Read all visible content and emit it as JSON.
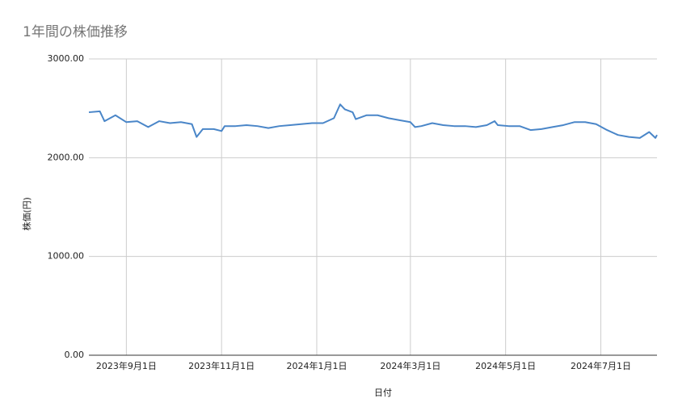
{
  "chart_data": {
    "type": "line",
    "title": "1年間の株価推移",
    "x_label": "日付",
    "y_label": "株価(円)",
    "x": [
      "2023-08-08",
      "2023-08-15",
      "2023-08-18",
      "2023-08-25",
      "2023-09-01",
      "2023-09-08",
      "2023-09-15",
      "2023-09-22",
      "2023-09-29",
      "2023-10-06",
      "2023-10-13",
      "2023-10-16",
      "2023-10-20",
      "2023-10-27",
      "2023-11-01",
      "2023-11-03",
      "2023-11-10",
      "2023-11-17",
      "2023-11-24",
      "2023-12-01",
      "2023-12-08",
      "2023-12-15",
      "2023-12-22",
      "2023-12-29",
      "2024-01-05",
      "2024-01-12",
      "2024-01-16",
      "2024-01-19",
      "2024-01-24",
      "2024-01-26",
      "2024-02-02",
      "2024-02-09",
      "2024-02-16",
      "2024-02-23",
      "2024-03-01",
      "2024-03-04",
      "2024-03-08",
      "2024-03-15",
      "2024-03-22",
      "2024-03-29",
      "2024-04-05",
      "2024-04-12",
      "2024-04-19",
      "2024-04-24",
      "2024-04-26",
      "2024-05-03",
      "2024-05-10",
      "2024-05-17",
      "2024-05-24",
      "2024-05-31",
      "2024-06-07",
      "2024-06-14",
      "2024-06-21",
      "2024-06-28",
      "2024-07-05",
      "2024-07-12",
      "2024-07-19",
      "2024-07-26",
      "2024-08-01",
      "2024-08-05",
      "2024-08-06"
    ],
    "series": [
      {
        "name": "株価",
        "color": "#4a86c8",
        "values": [
          2460,
          2470,
          2370,
          2430,
          2360,
          2370,
          2310,
          2370,
          2350,
          2360,
          2340,
          2210,
          2290,
          2290,
          2270,
          2320,
          2320,
          2330,
          2320,
          2300,
          2320,
          2330,
          2340,
          2350,
          2350,
          2400,
          2540,
          2490,
          2460,
          2390,
          2430,
          2430,
          2400,
          2380,
          2360,
          2310,
          2320,
          2350,
          2330,
          2320,
          2320,
          2310,
          2330,
          2370,
          2330,
          2320,
          2320,
          2280,
          2290,
          2310,
          2330,
          2360,
          2360,
          2340,
          2280,
          2230,
          2210,
          2200,
          2260,
          2200,
          2230
        ]
      }
    ],
    "xlim": [
      "2023-08-08",
      "2024-08-06"
    ],
    "xticks": [
      {
        "value": "2023-09-01",
        "label": "2023年9月1日"
      },
      {
        "value": "2023-11-01",
        "label": "2023年11月1日"
      },
      {
        "value": "2024-01-01",
        "label": "2024年1月1日"
      },
      {
        "value": "2024-03-01",
        "label": "2024年3月1日"
      },
      {
        "value": "2024-05-01",
        "label": "2024年5月1日"
      },
      {
        "value": "2024-07-01",
        "label": "2024年7月1日"
      }
    ],
    "ylim": [
      0,
      3000
    ],
    "yticks": [
      {
        "value": 0,
        "label": "0.00"
      },
      {
        "value": 1000,
        "label": "1000.00"
      },
      {
        "value": 2000,
        "label": "2000.00"
      },
      {
        "value": 3000,
        "label": "3000.00"
      }
    ],
    "grid": true
  }
}
